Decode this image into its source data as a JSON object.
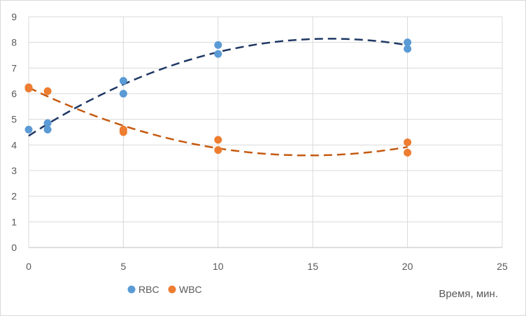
{
  "chart_data": {
    "type": "scatter",
    "xlabel": "Время, мин.",
    "ylabel": "",
    "xlim": [
      0,
      25
    ],
    "ylim": [
      0,
      9
    ],
    "x_ticks": [
      "0",
      "5",
      "10",
      "15",
      "20",
      "25"
    ],
    "y_ticks": [
      "0",
      "1",
      "2",
      "3",
      "4",
      "5",
      "6",
      "7",
      "8",
      "9"
    ],
    "grid": true,
    "legend_position": "bottom-left",
    "series": [
      {
        "name": "RBC",
        "color": "#5b9bd5",
        "trend_color": "#1f3864",
        "trendline": "polynomial",
        "points": [
          {
            "x": 0,
            "y": 4.6
          },
          {
            "x": 1,
            "y": 4.6
          },
          {
            "x": 1,
            "y": 4.85
          },
          {
            "x": 5,
            "y": 6.0
          },
          {
            "x": 5,
            "y": 6.5
          },
          {
            "x": 10,
            "y": 7.55
          },
          {
            "x": 10,
            "y": 7.9
          },
          {
            "x": 20,
            "y": 7.75
          },
          {
            "x": 20,
            "y": 8.0
          }
        ]
      },
      {
        "name": "WBC",
        "color": "#ed7d31",
        "trend_color": "#c55a11",
        "trendline": "polynomial",
        "points": [
          {
            "x": 0,
            "y": 6.2
          },
          {
            "x": 0,
            "y": 6.25
          },
          {
            "x": 1,
            "y": 6.1
          },
          {
            "x": 5,
            "y": 4.5
          },
          {
            "x": 5,
            "y": 4.6
          },
          {
            "x": 10,
            "y": 3.8
          },
          {
            "x": 10,
            "y": 4.2
          },
          {
            "x": 20,
            "y": 3.7
          },
          {
            "x": 20,
            "y": 4.1
          }
        ]
      }
    ]
  }
}
